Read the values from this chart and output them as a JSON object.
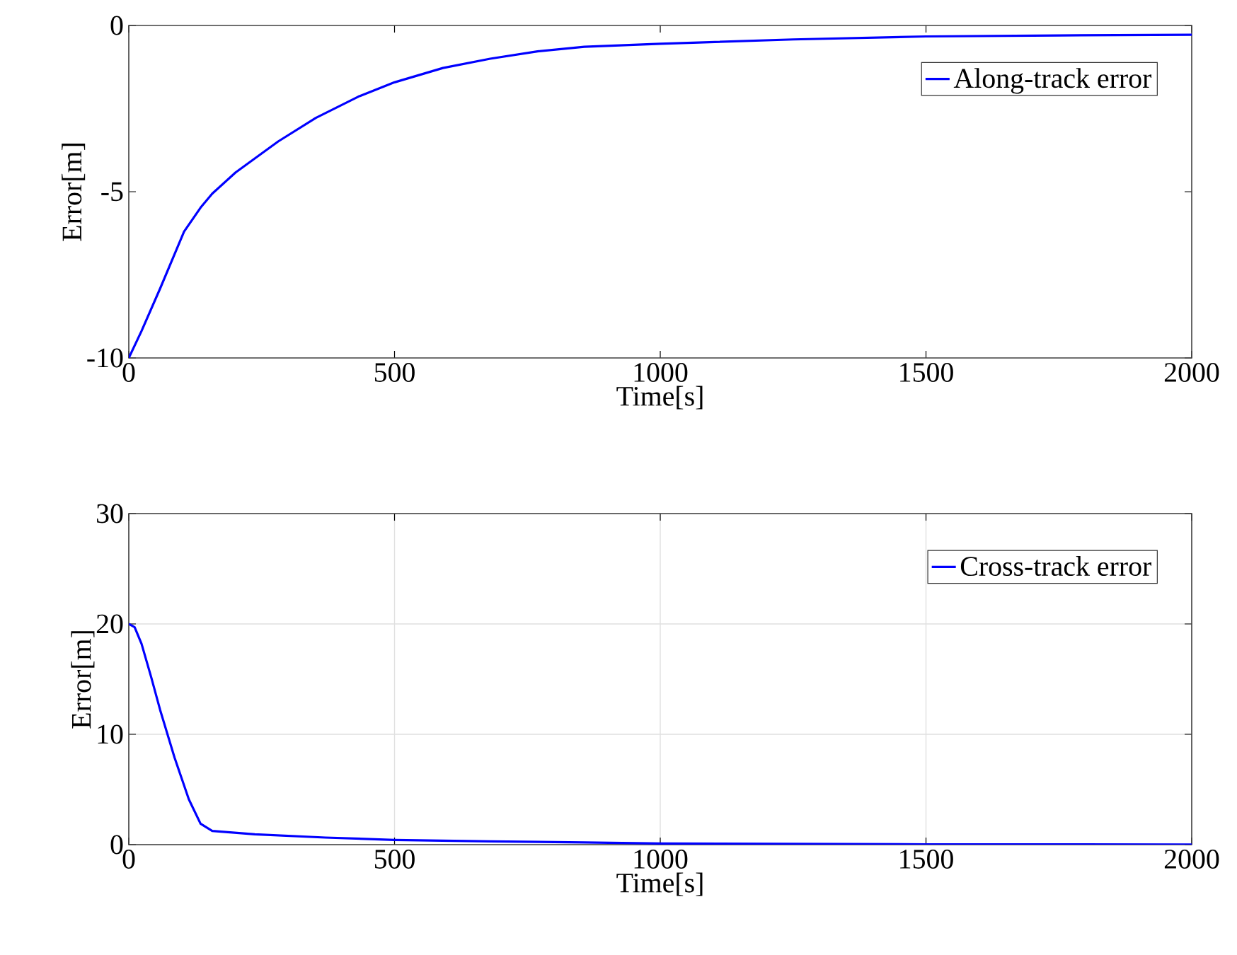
{
  "chart_data": [
    {
      "type": "line",
      "xlabel": "Time[s]",
      "ylabel": "Error[m]",
      "x": [
        0,
        24,
        59,
        104,
        135,
        157,
        201,
        281,
        352,
        432,
        500,
        591,
        680,
        769,
        857,
        1000,
        1250,
        1500,
        1750,
        2000
      ],
      "series": [
        {
          "name": "Along-track error",
          "color": "#0000ff",
          "values": [
            -10,
            -9.19,
            -7.91,
            -6.2,
            -5.48,
            -5.06,
            -4.42,
            -3.49,
            -2.78,
            -2.14,
            -1.71,
            -1.28,
            -1.0,
            -0.78,
            -0.64,
            -0.55,
            -0.42,
            -0.33,
            -0.3,
            -0.28
          ]
        }
      ],
      "xlim": [
        0,
        2000
      ],
      "ylim": [
        -10,
        0
      ],
      "xticks": [
        0,
        500,
        1000,
        1500,
        2000
      ],
      "yticks": [
        -10,
        -5,
        0
      ],
      "grid": false,
      "legend": "top right"
    },
    {
      "type": "line",
      "xlabel": "Time[s]",
      "ylabel": "Error[m]",
      "x": [
        0,
        11,
        24,
        42,
        59,
        86,
        113,
        135,
        157,
        237,
        370,
        500,
        680,
        857,
        1000,
        1500,
        2000
      ],
      "series": [
        {
          "name": "Cross-track error",
          "color": "#0000ff",
          "values": [
            20,
            19.7,
            18.2,
            15.2,
            12.2,
            7.9,
            4.1,
            1.9,
            1.24,
            0.94,
            0.64,
            0.43,
            0.3,
            0.2,
            0.1,
            0.03,
            0.01
          ]
        }
      ],
      "xlim": [
        0,
        2000
      ],
      "ylim": [
        0,
        30
      ],
      "xticks": [
        0,
        500,
        1000,
        1500,
        2000
      ],
      "yticks": [
        0,
        10,
        20,
        30
      ],
      "grid": true,
      "legend": "top right"
    }
  ]
}
